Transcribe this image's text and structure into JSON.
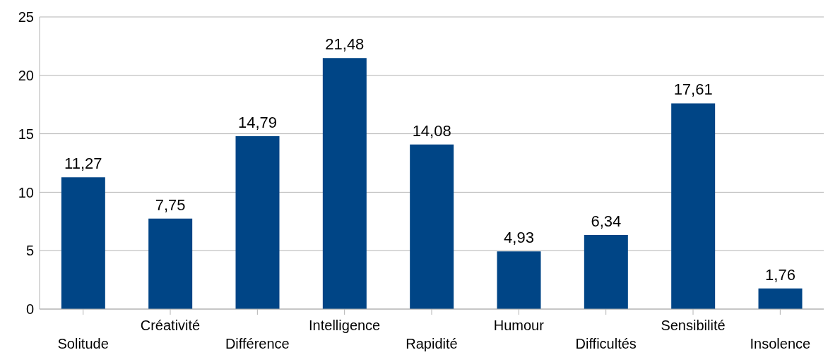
{
  "chart_data": {
    "type": "bar",
    "categories": [
      "Solitude",
      "Créativité",
      "Différence",
      "Intelligence",
      "Rapidité",
      "Humour",
      "Difficultés",
      "Sensibilité",
      "Insolence"
    ],
    "values": [
      11.27,
      7.75,
      14.79,
      21.48,
      14.08,
      4.93,
      6.34,
      17.61,
      1.76
    ],
    "value_labels": [
      "11,27",
      "7,75",
      "14,79",
      "21,48",
      "14,08",
      "4,93",
      "6,34",
      "17,61",
      "1,76"
    ],
    "color": "#004586",
    "ylim": [
      0,
      25
    ],
    "yticks": [
      0,
      5,
      10,
      15,
      20,
      25
    ],
    "grid": "y"
  }
}
